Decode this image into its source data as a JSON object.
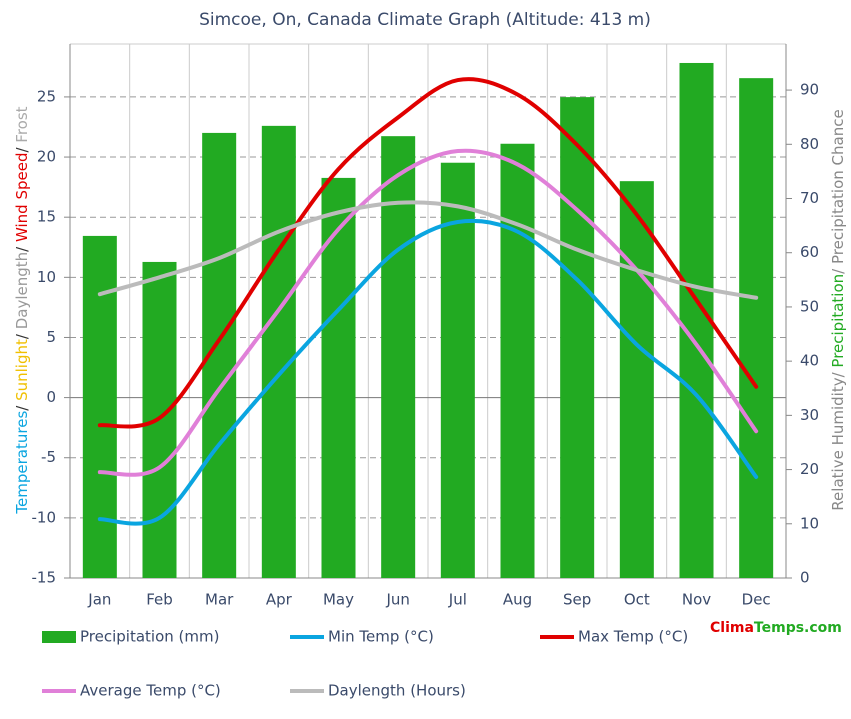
{
  "chart_data": {
    "type": "combo",
    "title": "Simcoe, On, Canada Climate Graph (Altitude: 413 m)",
    "categories": [
      "Jan",
      "Feb",
      "Mar",
      "Apr",
      "May",
      "Jun",
      "Jul",
      "Aug",
      "Sep",
      "Oct",
      "Nov",
      "Dec"
    ],
    "series": [
      {
        "name": "Precipitation (mm)",
        "type": "bar",
        "axis": "y2",
        "color": "#22aa22",
        "values": [
          63.1,
          58.3,
          82.1,
          83.4,
          73.8,
          81.5,
          76.6,
          80.1,
          88.7,
          73.2,
          95.0,
          92.2
        ]
      },
      {
        "name": "Min Temp (°C)",
        "type": "line",
        "color": "#0aa5e0",
        "values": [
          -10.1,
          -10.0,
          -3.9,
          1.9,
          7.3,
          12.3,
          14.6,
          13.8,
          9.8,
          4.4,
          0.2,
          -6.6
        ]
      },
      {
        "name": "Max Temp (°C)",
        "type": "line",
        "color": "#e00000",
        "values": [
          -2.3,
          -1.7,
          4.8,
          12.3,
          19.0,
          23.3,
          26.4,
          25.2,
          21.0,
          15.2,
          8.1,
          0.9
        ]
      },
      {
        "name": "Average Temp (°C)",
        "type": "line",
        "color": "#e080d8",
        "values": [
          -6.2,
          -5.8,
          0.7,
          7.3,
          14.0,
          18.5,
          20.5,
          19.4,
          15.6,
          10.6,
          4.4,
          -2.8
        ]
      },
      {
        "name": "Daylength (Hours)",
        "type": "line",
        "color": "#bbbbbb",
        "values": [
          8.6,
          10.0,
          11.6,
          13.8,
          15.4,
          16.2,
          15.9,
          14.4,
          12.3,
          10.6,
          9.2,
          8.3
        ]
      }
    ],
    "ylim": [
      -15,
      29.4
    ],
    "yticks": [
      -15,
      -10,
      -5,
      0,
      5,
      10,
      15,
      20,
      25
    ],
    "y2lim": [
      0,
      98.5
    ],
    "y2ticks": [
      0,
      10,
      20,
      30,
      40,
      50,
      60,
      70,
      80,
      90
    ],
    "grid": true,
    "y_label_parts": [
      {
        "text": "Temperatures",
        "color": "#0aa5e0"
      },
      {
        "text": "/ ",
        "color": "#333333"
      },
      {
        "text": "Sunlight",
        "color": "#f0c000"
      },
      {
        "text": "/ ",
        "color": "#333333"
      },
      {
        "text": "Daylength",
        "color": "#999999"
      },
      {
        "text": "/ ",
        "color": "#333333"
      },
      {
        "text": "Wind Speed",
        "color": "#e00000"
      },
      {
        "text": "/ ",
        "color": "#333333"
      },
      {
        "text": "Frost",
        "color": "#aaaaaa"
      }
    ],
    "y2_label_parts": [
      {
        "text": "Relative Humidity/ ",
        "color": "#888888"
      },
      {
        "text": "Precipitation",
        "color": "#22aa22"
      },
      {
        "text": "/ Precipitation Chance",
        "color": "#888888"
      }
    ],
    "watermark_parts": [
      {
        "text": "Clima",
        "color": "#e00000"
      },
      {
        "text": "Temps.com",
        "color": "#22aa22"
      }
    ]
  }
}
